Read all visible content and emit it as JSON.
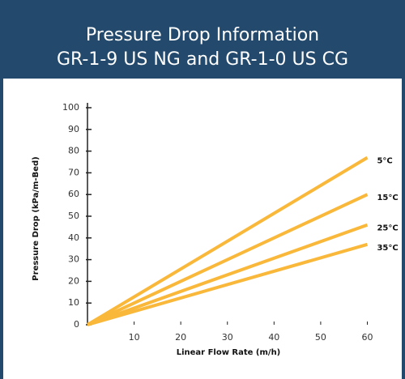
{
  "chart_data": {
    "type": "line",
    "title": "Pressure Drop Information",
    "subtitle": "GR-1-9 US NG and GR-1-0 US CG",
    "x_label": "Linear Flow Rate (m/h)",
    "y_label": "Pressure Drop (kPa/m-Bed)",
    "x": [
      0,
      60
    ],
    "series": [
      {
        "name": "5°C",
        "color": "#f9b83a",
        "values": [
          0,
          77
        ]
      },
      {
        "name": "15°C",
        "color": "#f9b83a",
        "values": [
          0,
          60
        ]
      },
      {
        "name": "25°C",
        "color": "#f9b83a",
        "values": [
          0,
          46
        ]
      },
      {
        "name": "35°C",
        "color": "#f9b83a",
        "values": [
          0,
          37
        ]
      }
    ],
    "xlim": [
      0,
      62
    ],
    "xticks": [
      10,
      20,
      30,
      40,
      50,
      60
    ],
    "ylim": [
      0,
      100
    ],
    "yticks": [
      0,
      10,
      20,
      30,
      40,
      50,
      60,
      70,
      80,
      90,
      100
    ]
  }
}
